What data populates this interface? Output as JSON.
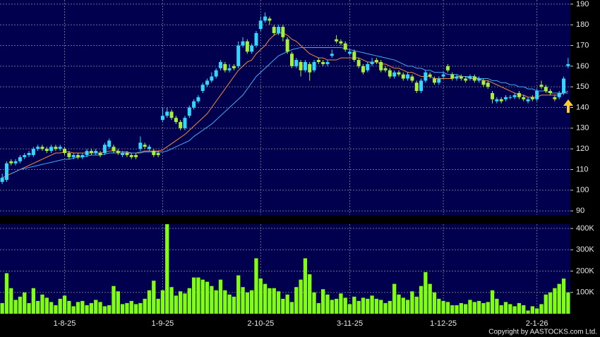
{
  "chart_data": [
    {
      "type": "candlestick",
      "categories": [
        null,
        null,
        null,
        null,
        null,
        null,
        null,
        null,
        null,
        null,
        null,
        null,
        null,
        null,
        "1-8-25",
        null,
        null,
        null,
        null,
        null,
        null,
        null,
        null,
        null,
        null,
        null,
        null,
        null,
        null,
        null,
        null,
        null,
        null,
        null,
        null,
        null,
        "1-9-25",
        null,
        null,
        null,
        null,
        null,
        null,
        null,
        null,
        null,
        null,
        null,
        null,
        null,
        null,
        null,
        null,
        null,
        null,
        null,
        null,
        null,
        "2-10-25",
        null,
        null,
        null,
        null,
        null,
        null,
        null,
        null,
        null,
        null,
        null,
        null,
        null,
        null,
        null,
        null,
        null,
        null,
        null,
        "3-11-25",
        null,
        null,
        null,
        null,
        null,
        null,
        null,
        null,
        null,
        null,
        null,
        null,
        null,
        null,
        null,
        null,
        null,
        null,
        null,
        null,
        "1-12-25",
        null,
        null,
        null,
        null,
        null,
        null,
        null,
        null,
        null,
        null,
        null,
        null,
        null,
        null,
        null,
        null,
        null,
        null,
        null,
        null,
        "2-1-26",
        null,
        null,
        null,
        null,
        null,
        null,
        null
      ],
      "ohlc": [
        [
          104,
          108,
          103,
          106
        ],
        [
          105,
          114,
          104,
          113
        ],
        [
          114,
          115,
          112,
          113
        ],
        [
          113,
          115,
          112,
          114
        ],
        [
          114,
          117,
          113,
          116
        ],
        [
          116,
          118,
          115,
          117
        ],
        [
          117,
          119,
          116,
          118
        ],
        [
          117,
          121,
          116,
          120
        ],
        [
          120,
          122,
          119,
          121
        ],
        [
          121,
          122,
          119,
          120
        ],
        [
          120,
          121,
          118,
          119
        ],
        [
          119,
          122,
          118,
          121
        ],
        [
          121,
          122,
          119,
          120
        ],
        [
          120,
          122,
          119,
          121
        ],
        [
          120,
          121,
          117,
          118
        ],
        [
          118,
          119,
          115,
          116
        ],
        [
          116,
          118,
          115,
          117
        ],
        [
          117,
          118,
          115,
          116
        ],
        [
          116,
          118,
          115,
          117
        ],
        [
          117,
          120,
          116,
          119
        ],
        [
          119,
          120,
          117,
          118
        ],
        [
          118,
          120,
          117,
          119
        ],
        [
          118,
          119,
          116,
          117
        ],
        [
          118,
          123,
          117,
          122
        ],
        [
          121,
          125,
          120,
          124
        ],
        [
          121,
          122,
          118,
          119
        ],
        [
          119,
          120,
          117,
          118
        ],
        [
          117,
          119,
          116,
          118
        ],
        [
          118,
          119,
          116,
          117
        ],
        [
          117,
          118,
          115,
          116
        ],
        [
          117,
          118,
          115,
          116
        ],
        [
          120,
          126,
          119,
          123
        ],
        [
          122,
          123,
          120,
          121
        ],
        [
          120,
          122,
          119,
          121
        ],
        [
          119,
          120,
          116,
          117
        ],
        [
          118,
          119,
          116,
          117
        ],
        [
          134,
          140,
          133,
          136
        ],
        [
          136,
          140,
          135,
          138
        ],
        [
          138,
          139,
          134,
          135
        ],
        [
          135,
          136,
          132,
          133
        ],
        [
          133,
          134,
          129,
          130
        ],
        [
          130,
          136,
          129,
          135
        ],
        [
          136,
          141,
          135,
          140
        ],
        [
          140,
          144,
          139,
          143
        ],
        [
          143,
          146,
          142,
          145
        ],
        [
          148,
          152,
          147,
          151
        ],
        [
          151,
          154,
          150,
          153
        ],
        [
          153,
          157,
          152,
          155
        ],
        [
          155,
          159,
          154,
          158
        ],
        [
          159,
          163,
          158,
          162
        ],
        [
          161,
          162,
          157,
          158
        ],
        [
          158,
          161,
          157,
          159
        ],
        [
          160,
          161,
          158,
          159
        ],
        [
          160,
          172,
          159,
          170
        ],
        [
          170,
          174,
          169,
          172
        ],
        [
          172,
          173,
          166,
          167
        ],
        [
          167,
          171,
          166,
          170
        ],
        [
          170,
          177,
          169,
          176
        ],
        [
          178,
          184,
          177,
          182
        ],
        [
          182,
          186,
          181,
          184
        ],
        [
          183,
          184,
          180,
          182
        ],
        [
          179,
          180,
          175,
          176
        ],
        [
          176,
          180,
          175,
          179
        ],
        [
          179,
          180,
          172,
          174
        ],
        [
          173,
          174,
          166,
          167
        ],
        [
          166,
          167,
          159,
          160
        ],
        [
          160,
          164,
          159,
          163
        ],
        [
          162,
          163,
          155,
          158
        ],
        [
          158,
          163,
          157,
          162
        ],
        [
          161,
          162,
          153,
          157
        ],
        [
          158,
          163,
          157,
          162
        ],
        [
          163,
          164,
          161,
          162
        ],
        [
          162,
          163,
          160,
          161
        ],
        [
          161,
          163,
          160,
          162
        ],
        [
          165,
          168,
          164,
          166
        ],
        [
          173,
          175,
          171,
          172
        ],
        [
          172,
          173,
          170,
          171
        ],
        [
          171,
          172,
          167,
          168
        ],
        [
          166,
          168,
          165,
          167
        ],
        [
          167,
          168,
          162,
          163
        ],
        [
          163,
          164,
          159,
          160
        ],
        [
          160,
          161,
          156,
          157
        ],
        [
          158,
          162,
          157,
          161
        ],
        [
          161,
          164,
          160,
          162
        ],
        [
          163,
          164,
          161,
          162
        ],
        [
          162,
          163,
          157,
          158
        ],
        [
          159,
          160,
          157,
          158
        ],
        [
          158,
          159,
          154,
          155
        ],
        [
          155,
          158,
          154,
          157
        ],
        [
          157,
          158,
          155,
          156
        ],
        [
          156,
          157,
          153,
          154
        ],
        [
          154,
          157,
          153,
          156
        ],
        [
          155,
          156,
          152,
          153
        ],
        [
          152,
          153,
          147,
          148
        ],
        [
          148,
          154,
          147,
          153
        ],
        [
          153,
          158,
          152,
          157
        ],
        [
          156,
          157,
          154,
          155
        ],
        [
          154,
          155,
          151,
          152
        ],
        [
          152,
          155,
          151,
          154
        ],
        [
          155,
          157,
          154,
          156
        ],
        [
          160,
          161,
          157,
          158
        ],
        [
          156,
          157,
          153,
          154
        ],
        [
          154,
          156,
          153,
          155
        ],
        [
          155,
          156,
          153,
          154
        ],
        [
          154,
          155,
          152,
          153
        ],
        [
          154,
          156,
          153,
          155
        ],
        [
          155,
          156,
          152,
          153
        ],
        [
          153,
          155,
          152,
          154
        ],
        [
          153,
          154,
          150,
          151
        ],
        [
          152,
          153,
          149,
          150
        ],
        [
          147,
          148,
          142,
          144
        ],
        [
          143,
          145,
          142,
          144
        ],
        [
          144,
          145,
          142,
          143
        ],
        [
          144,
          146,
          143,
          145
        ],
        [
          145,
          146,
          144,
          145
        ],
        [
          145,
          147,
          144,
          146
        ],
        [
          147,
          148,
          144,
          145
        ],
        [
          145,
          146,
          143,
          144
        ],
        [
          143,
          145,
          142,
          144
        ],
        [
          145,
          146,
          143,
          144
        ],
        [
          144,
          149,
          143,
          148
        ],
        [
          151,
          153,
          149,
          150
        ],
        [
          150,
          151,
          147,
          148
        ],
        [
          148,
          149,
          146,
          147
        ],
        [
          145,
          146,
          143,
          144
        ],
        [
          145,
          148,
          144,
          147
        ],
        [
          147,
          155,
          146,
          154
        ],
        [
          160,
          164,
          159,
          161
        ]
      ],
      "up_color": "#33d6ff",
      "down_color": "#a6f03c",
      "lines": [
        {
          "color": "#f08c3c",
          "values": [
            106,
            107,
            108,
            109,
            110,
            111,
            112,
            113,
            114,
            115,
            116,
            117,
            118,
            118,
            118.5,
            118.5,
            118,
            118,
            118,
            118,
            118,
            118,
            118,
            118.5,
            119,
            119,
            119,
            118.5,
            118.5,
            118,
            118,
            118.5,
            119,
            119,
            119,
            119,
            119.5,
            121,
            122.5,
            124,
            125.5,
            127,
            129,
            131,
            133,
            135,
            137,
            140,
            143,
            146,
            149,
            152,
            155,
            158,
            160,
            162,
            163,
            166,
            168,
            170,
            173,
            175,
            176,
            176,
            175,
            173,
            172,
            170,
            168,
            166,
            165,
            164,
            164,
            163,
            163,
            163,
            164,
            164,
            164,
            164,
            164,
            163,
            162,
            162,
            162,
            161,
            161,
            160,
            159,
            159,
            158,
            157,
            157,
            156,
            155,
            155,
            155,
            154,
            154,
            154,
            154,
            154,
            155,
            155,
            155,
            154,
            154,
            154,
            153,
            153,
            152,
            151,
            150,
            149,
            148,
            147,
            146,
            146,
            145,
            145,
            145,
            146,
            146,
            146,
            146,
            146,
            147,
            148
          ]
        },
        {
          "color": "#4aa8f0",
          "values": [
            null,
            null,
            108,
            109,
            110,
            110.5,
            111,
            111.5,
            112,
            112.5,
            113,
            113.5,
            114,
            114.5,
            115,
            115,
            115.5,
            116,
            116,
            116.5,
            117,
            117,
            117,
            117.5,
            118,
            118,
            118,
            118,
            118,
            118,
            118,
            118,
            118.5,
            118.5,
            118.5,
            118.5,
            118.5,
            119,
            120,
            121,
            122,
            123,
            124,
            126,
            127.5,
            129,
            130.5,
            132,
            134,
            136,
            138,
            140,
            142,
            144,
            146,
            149,
            152,
            155,
            157,
            159,
            161,
            163,
            165,
            166,
            167,
            168,
            168.5,
            169,
            169,
            169,
            169,
            169,
            169,
            169,
            169,
            169,
            169,
            168.5,
            168,
            167.5,
            167,
            166.5,
            166,
            165.5,
            165,
            164.5,
            164,
            163.5,
            163,
            162,
            161,
            160,
            160,
            159,
            159,
            158,
            158,
            157,
            157,
            157,
            156,
            156,
            156,
            155,
            155,
            155,
            155,
            154,
            154,
            154,
            153,
            153,
            152,
            152,
            151,
            151,
            150,
            150,
            149,
            149,
            148,
            148,
            148,
            147,
            147,
            147,
            147,
            147
          ]
        }
      ],
      "ylim": [
        88,
        192
      ],
      "yticks": [
        90,
        100,
        110,
        120,
        130,
        140,
        150,
        160,
        170,
        180,
        190
      ],
      "grid": true
    },
    {
      "type": "bar",
      "values": [
        50000,
        190000,
        120000,
        65000,
        80000,
        100000,
        50000,
        120000,
        60000,
        90000,
        75000,
        55000,
        40000,
        70000,
        85000,
        60000,
        35000,
        55000,
        60000,
        40000,
        50000,
        65000,
        55000,
        35000,
        40000,
        130000,
        105000,
        45000,
        50000,
        60000,
        45000,
        50000,
        70000,
        110000,
        155000,
        70000,
        110000,
        420000,
        125000,
        85000,
        105000,
        95000,
        120000,
        170000,
        170000,
        160000,
        150000,
        130000,
        110000,
        160000,
        110000,
        90000,
        80000,
        180000,
        125000,
        100000,
        110000,
        260000,
        165000,
        140000,
        120000,
        120000,
        105000,
        70000,
        90000,
        55000,
        125000,
        160000,
        260000,
        185000,
        100000,
        50000,
        115000,
        90000,
        65000,
        70000,
        95000,
        75000,
        45000,
        80000,
        60000,
        75000,
        70000,
        85000,
        70000,
        65000,
        50000,
        60000,
        140000,
        90000,
        75000,
        65000,
        105000,
        80000,
        130000,
        195000,
        140000,
        100000,
        70000,
        60000,
        55000,
        40000,
        40000,
        50000,
        45000,
        65000,
        55000,
        60000,
        50000,
        55000,
        110000,
        70000,
        40000,
        55000,
        45000,
        35000,
        50000,
        40000,
        15000,
        35000,
        25000,
        45000,
        90000,
        100000,
        120000,
        140000,
        165000,
        100000
      ],
      "color": "#80ff10",
      "ylim": [
        0,
        420000
      ],
      "yticks": [
        {
          "value": 100000,
          "label": "100K"
        },
        {
          "value": 200000,
          "label": "200K"
        },
        {
          "value": 300000,
          "label": "300K"
        },
        {
          "value": 400000,
          "label": "400K"
        }
      ],
      "grid": true
    }
  ],
  "copyright": "Copyright by AASTOCKS.com Ltd."
}
